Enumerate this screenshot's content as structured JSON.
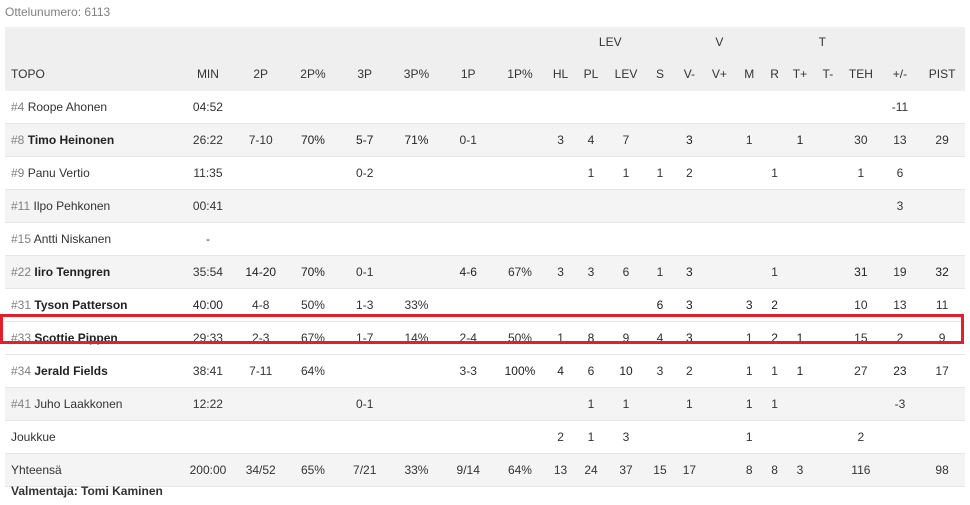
{
  "game_number_label": "Ottelunumero: 6113",
  "groups": {
    "lev": "LEV",
    "v": "V",
    "t": "T"
  },
  "columns": [
    "TOPO",
    "MIN",
    "2P",
    "2P%",
    "3P",
    "3P%",
    "1P",
    "1P%",
    "HL",
    "PL",
    "LEV",
    "S",
    "V-",
    "V+",
    "M",
    "R",
    "T+",
    "T-",
    "TEH",
    "+/-",
    "PIST"
  ],
  "rows": [
    {
      "num": "#4",
      "name": "Roope Ahonen",
      "bold": false,
      "cells": [
        "04:52",
        "",
        "",
        "",
        "",
        "",
        "",
        "",
        "",
        "",
        "",
        "",
        "",
        "",
        "",
        "",
        "",
        "",
        "-11",
        ""
      ],
      "b": []
    },
    {
      "num": "#8",
      "name": "Timo Heinonen",
      "bold": true,
      "cells": [
        "26:22",
        "7-10",
        "70%",
        "5-7",
        "71%",
        "0-1",
        "",
        "3",
        "4",
        "7",
        "",
        "3",
        "",
        "1",
        "",
        "1",
        "",
        "30",
        "13",
        "29"
      ],
      "b": [
        2,
        3,
        4,
        11,
        15
      ]
    },
    {
      "num": "#9",
      "name": "Panu Vertio",
      "bold": false,
      "cells": [
        "11:35",
        "",
        "",
        "0-2",
        "",
        "",
        "",
        "",
        "1",
        "1",
        "1",
        "2",
        "",
        "",
        "1",
        "",
        "",
        "1",
        "6",
        ""
      ],
      "b": []
    },
    {
      "num": "#11",
      "name": "Ilpo Pehkonen",
      "bold": false,
      "cells": [
        "00:41",
        "",
        "",
        "",
        "",
        "",
        "",
        "",
        "",
        "",
        "",
        "",
        "",
        "",
        "",
        "",
        "",
        "",
        "3",
        ""
      ],
      "b": []
    },
    {
      "num": "#15",
      "name": "Antti Niskanen",
      "bold": false,
      "cells": [
        "-",
        "",
        "",
        "",
        "",
        "",
        "",
        "",
        "",
        "",
        "",
        "",
        "",
        "",
        "",
        "",
        "",
        "",
        "",
        ""
      ],
      "b": []
    },
    {
      "num": "#22",
      "name": "Iiro Tenngren",
      "bold": true,
      "cells": [
        "35:54",
        "14-20",
        "70%",
        "0-1",
        "",
        "4-6",
        "67%",
        "3",
        "3",
        "6",
        "1",
        "3",
        "",
        "",
        "1",
        "",
        "",
        "31",
        "19",
        "32"
      ],
      "b": [
        1,
        2,
        5,
        11,
        17,
        19
      ]
    },
    {
      "num": "#31",
      "name": "Tyson Patterson",
      "bold": true,
      "cells": [
        "40:00",
        "4-8",
        "50%",
        "1-3",
        "33%",
        "",
        "",
        "",
        "",
        "",
        "6",
        "3",
        "",
        "3",
        "2",
        "",
        "",
        "10",
        "13",
        "11"
      ],
      "b": [
        0,
        10,
        11,
        13,
        14
      ]
    },
    {
      "num": "#33",
      "name": "Scottie Pippen",
      "bold": true,
      "highlight": true,
      "cells": [
        "29:33",
        "2-3",
        "67%",
        "1-7",
        "14%",
        "2-4",
        "50%",
        "1",
        "8",
        "9",
        "4",
        "3",
        "",
        "1",
        "2",
        "1",
        "",
        "15",
        "2",
        "9"
      ],
      "b": [
        8,
        11,
        14,
        15
      ]
    },
    {
      "num": "#34",
      "name": "Jerald Fields",
      "bold": true,
      "cells": [
        "38:41",
        "7-11",
        "64%",
        "",
        "",
        "3-3",
        "100%",
        "4",
        "6",
        "10",
        "3",
        "2",
        "",
        "1",
        "1",
        "1",
        "",
        "27",
        "23",
        "17"
      ],
      "b": [
        6,
        7,
        9,
        15,
        18
      ]
    },
    {
      "num": "#41",
      "name": "Juho Laakkonen",
      "bold": false,
      "cells": [
        "12:22",
        "",
        "",
        "0-1",
        "",
        "",
        "",
        "",
        "1",
        "1",
        "",
        "1",
        "",
        "1",
        "1",
        "",
        "",
        "",
        "-3",
        ""
      ],
      "b": []
    },
    {
      "num": "",
      "name": "Joukkue",
      "bold": false,
      "cells": [
        "",
        "",
        "",
        "",
        "",
        "",
        "",
        "2",
        "1",
        "3",
        "",
        "",
        "",
        "1",
        "",
        "",
        "",
        "2",
        "",
        ""
      ],
      "b": []
    },
    {
      "num": "",
      "name": "Yhteensä",
      "bold": false,
      "cells": [
        "200:00",
        "34/52",
        "65%",
        "7/21",
        "33%",
        "9/14",
        "64%",
        "13",
        "24",
        "37",
        "15",
        "17",
        "",
        "8",
        "8",
        "3",
        "",
        "116",
        "",
        "98"
      ],
      "b": []
    }
  ],
  "coach": "Valmentaja: Tomi Kaminen",
  "colors": {
    "highlight_border": "#e2202c",
    "header_bg": "#efefef",
    "stripe_bg": "#f4f4f4"
  }
}
